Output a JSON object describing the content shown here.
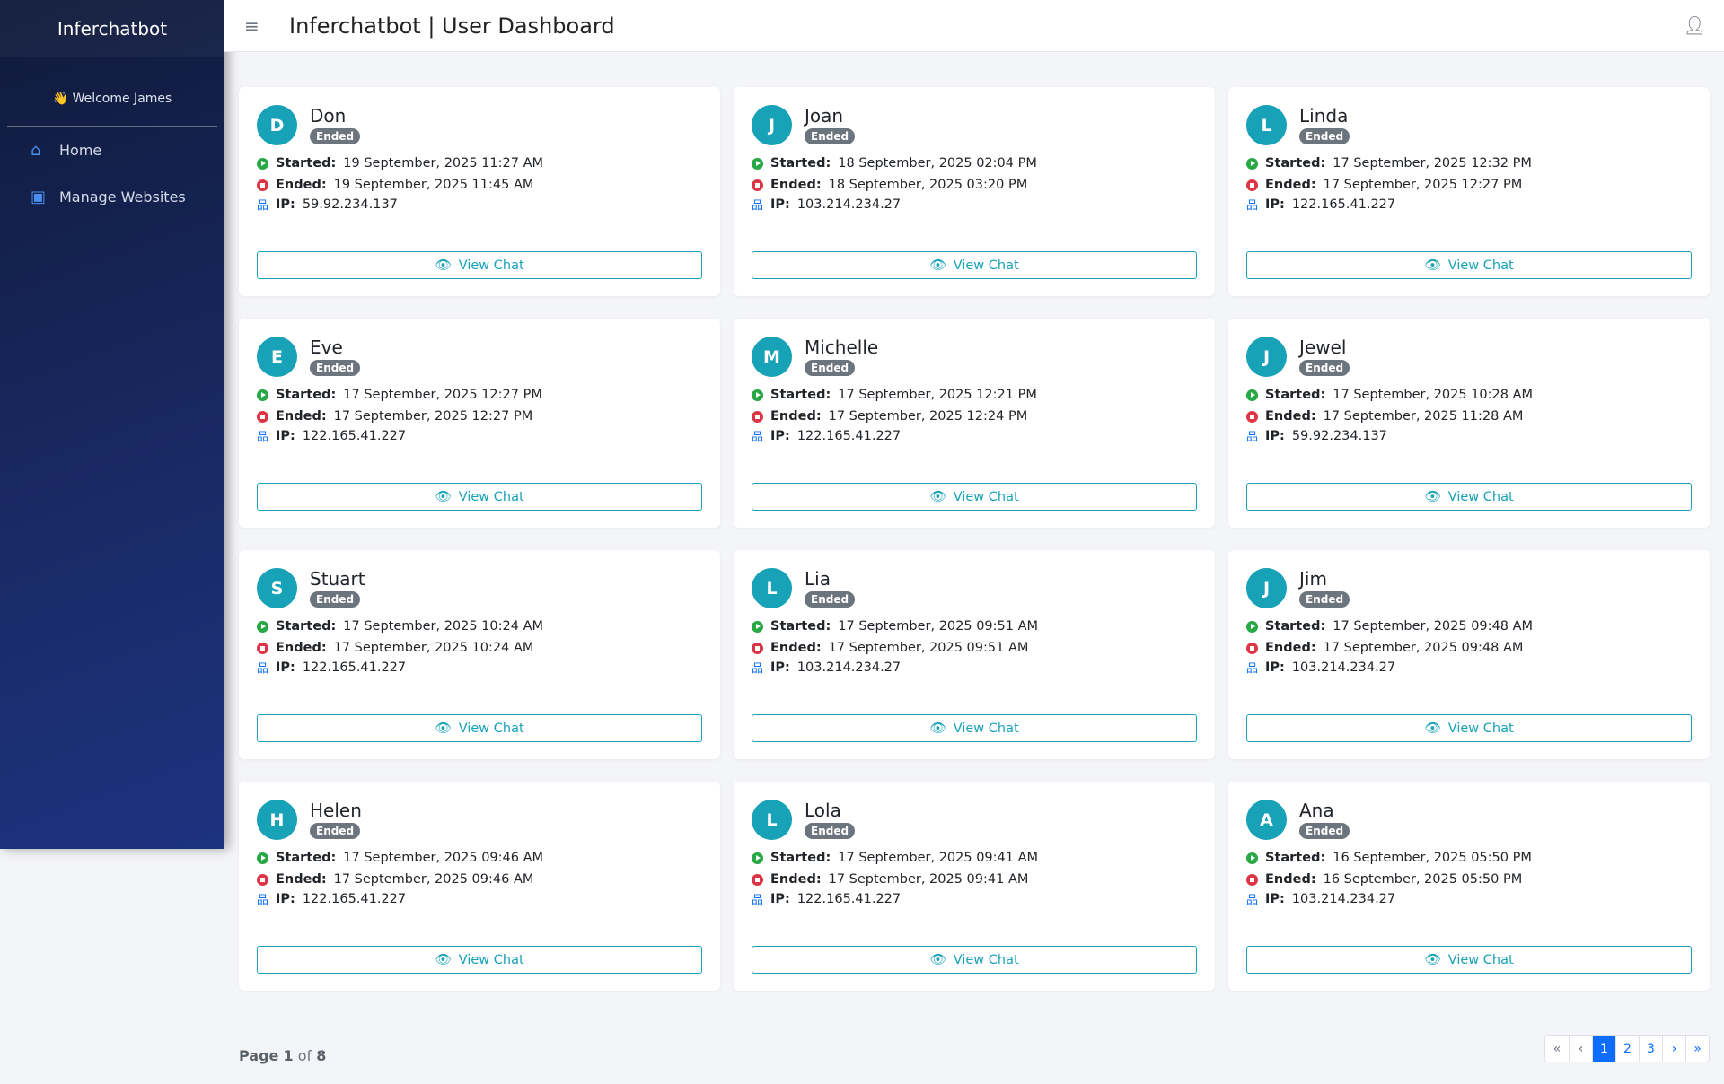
{
  "sidebar": {
    "brand": "Inferchatbot",
    "welcome": "👋 Welcome James",
    "items": [
      {
        "label": "Home",
        "icon": "home-icon"
      },
      {
        "label": "Manage Websites",
        "icon": "manage-websites-icon"
      }
    ]
  },
  "header": {
    "title": "Inferchatbot | User Dashboard"
  },
  "labels": {
    "started": "Started:",
    "ended": "Ended:",
    "ip": "IP:",
    "view": "View Chat"
  },
  "chats": [
    {
      "initial": "D",
      "name": "Don",
      "status": "Ended",
      "started": "19 September, 2025 11:27 AM",
      "ended": "19 September, 2025 11:45 AM",
      "ip": "59.92.234.137"
    },
    {
      "initial": "J",
      "name": "Joan",
      "status": "Ended",
      "started": "18 September, 2025 02:04 PM",
      "ended": "18 September, 2025 03:20 PM",
      "ip": "103.214.234.27"
    },
    {
      "initial": "L",
      "name": "Linda",
      "status": "Ended",
      "started": "17 September, 2025 12:32 PM",
      "ended": "17 September, 2025 12:27 PM",
      "ip": "122.165.41.227"
    },
    {
      "initial": "E",
      "name": "Eve",
      "status": "Ended",
      "started": "17 September, 2025 12:27 PM",
      "ended": "17 September, 2025 12:27 PM",
      "ip": "122.165.41.227"
    },
    {
      "initial": "M",
      "name": "Michelle",
      "status": "Ended",
      "started": "17 September, 2025 12:21 PM",
      "ended": "17 September, 2025 12:24 PM",
      "ip": "122.165.41.227"
    },
    {
      "initial": "J",
      "name": "Jewel",
      "status": "Ended",
      "started": "17 September, 2025 10:28 AM",
      "ended": "17 September, 2025 11:28 AM",
      "ip": "59.92.234.137"
    },
    {
      "initial": "S",
      "name": "Stuart",
      "status": "Ended",
      "started": "17 September, 2025 10:24 AM",
      "ended": "17 September, 2025 10:24 AM",
      "ip": "122.165.41.227"
    },
    {
      "initial": "L",
      "name": "Lia",
      "status": "Ended",
      "started": "17 September, 2025 09:51 AM",
      "ended": "17 September, 2025 09:51 AM",
      "ip": "103.214.234.27"
    },
    {
      "initial": "J",
      "name": "Jim",
      "status": "Ended",
      "started": "17 September, 2025 09:48 AM",
      "ended": "17 September, 2025 09:48 AM",
      "ip": "103.214.234.27"
    },
    {
      "initial": "H",
      "name": "Helen",
      "status": "Ended",
      "started": "17 September, 2025 09:46 AM",
      "ended": "17 September, 2025 09:46 AM",
      "ip": "122.165.41.227"
    },
    {
      "initial": "L",
      "name": "Lola",
      "status": "Ended",
      "started": "17 September, 2025 09:41 AM",
      "ended": "17 September, 2025 09:41 AM",
      "ip": "122.165.41.227"
    },
    {
      "initial": "A",
      "name": "Ana",
      "status": "Ended",
      "started": "16 September, 2025 05:50 PM",
      "ended": "16 September, 2025 05:50 PM",
      "ip": "103.214.234.27"
    }
  ],
  "pagination": {
    "page_word": "Page",
    "current": "1",
    "of_word": "of",
    "total": "8",
    "first": "«",
    "prev": "‹",
    "pages": [
      "1",
      "2",
      "3"
    ],
    "next": "›",
    "last": "»"
  }
}
